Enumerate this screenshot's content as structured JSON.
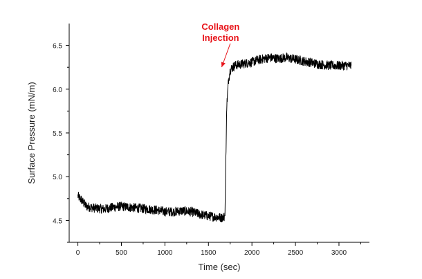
{
  "chart_data": {
    "type": "line",
    "title": "",
    "xlabel": "Time (sec)",
    "ylabel": "Surface Pressure (mN/m)",
    "xlim": [
      -100,
      3350
    ],
    "ylim": [
      4.25,
      6.75
    ],
    "xticks": [
      0,
      500,
      1000,
      1500,
      2000,
      2500,
      3000
    ],
    "yticks": [
      4.5,
      5.0,
      5.5,
      6.0,
      6.5
    ],
    "xtick_labels": [
      "0",
      "500",
      "1000",
      "1500",
      "2000",
      "2500",
      "3000"
    ],
    "ytick_labels": [
      "4.5",
      "5.0",
      "5.5",
      "6.0",
      "6.5"
    ],
    "grid": false,
    "series": [
      {
        "color": "#000000",
        "x": [
          0,
          50,
          100,
          200,
          300,
          400,
          500,
          600,
          700,
          800,
          900,
          1000,
          1100,
          1200,
          1300,
          1400,
          1500,
          1600,
          1650,
          1690,
          1700,
          1705,
          1710,
          1720,
          1730,
          1750,
          1800,
          1900,
          2000,
          2100,
          2200,
          2300,
          2400,
          2500,
          2600,
          2700,
          2800,
          2900,
          3000,
          3100,
          3140
        ],
        "y": [
          4.78,
          4.72,
          4.66,
          4.64,
          4.63,
          4.65,
          4.66,
          4.65,
          4.64,
          4.63,
          4.62,
          4.6,
          4.6,
          4.61,
          4.6,
          4.57,
          4.55,
          4.54,
          4.53,
          4.55,
          5.2,
          5.45,
          5.8,
          5.95,
          6.1,
          6.22,
          6.27,
          6.29,
          6.31,
          6.34,
          6.36,
          6.35,
          6.36,
          6.34,
          6.32,
          6.3,
          6.28,
          6.27,
          6.27,
          6.27,
          6.27
        ]
      }
    ],
    "annotations": [
      {
        "text_lines": [
          "Collagen",
          "Injection"
        ],
        "color": "#e8141a",
        "x": 1640,
        "y": 6.68,
        "arrow_to_x": 1700,
        "arrow_to_y": 6.22
      }
    ]
  }
}
